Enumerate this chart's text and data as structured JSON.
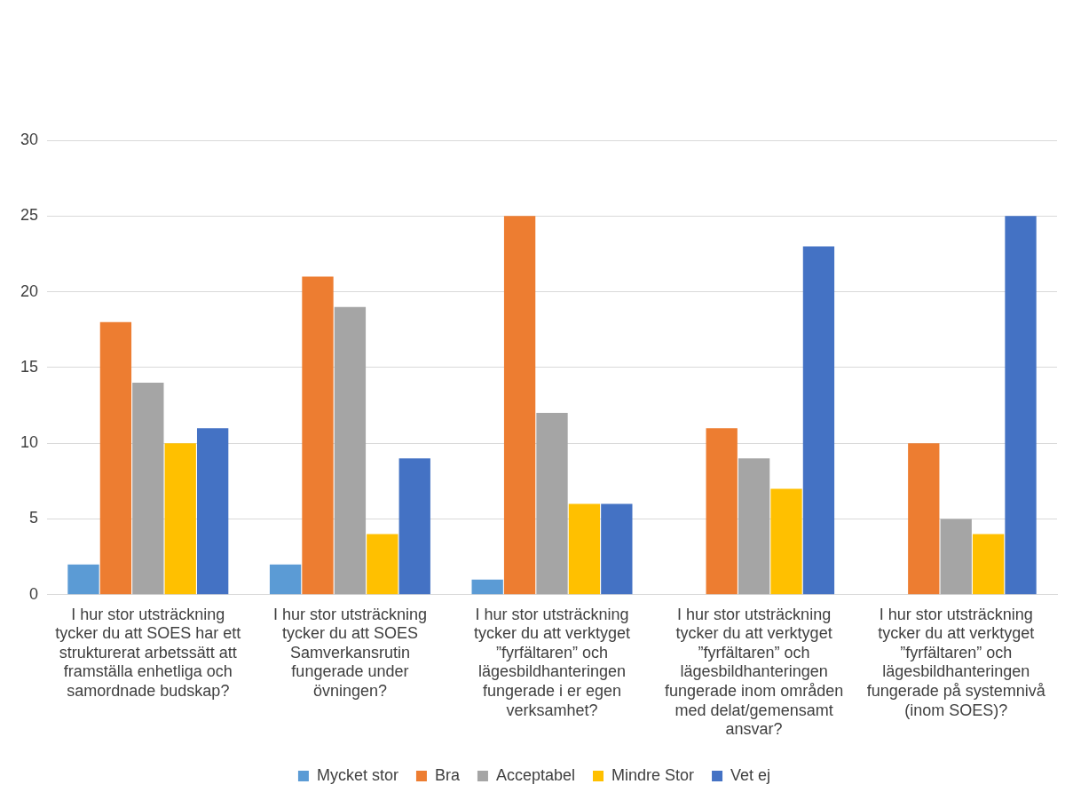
{
  "chart_data": {
    "type": "bar",
    "categories": [
      "I hur stor utsträckning tycker du att SOES har ett strukturerat arbetssätt att framställa enhetliga och samordnade budskap?",
      "I hur stor utsträckning tycker du att SOES Samverkansrutin fungerade under övningen?",
      "I hur stor utsträckning tycker du att verktyget ”fyrfältaren” och lägesbildhanteringen fungerade i er egen verksamhet?",
      "I hur stor utsträckning tycker du att verktyget ”fyrfältaren” och lägesbildhanteringen fungerade inom områden med delat/gemensamt ansvar?",
      "I hur stor utsträckning tycker du att verktyget ”fyrfältaren” och lägesbildhanteringen fungerade på systemnivå (inom SOES)?"
    ],
    "series": [
      {
        "name": "Mycket stor",
        "color": "#5b9bd5",
        "values": [
          2,
          2,
          1,
          0,
          0
        ]
      },
      {
        "name": "Bra",
        "color": "#ed7d31",
        "values": [
          18,
          21,
          25,
          11,
          10
        ]
      },
      {
        "name": "Acceptabel",
        "color": "#a5a5a5",
        "values": [
          14,
          19,
          12,
          9,
          5
        ]
      },
      {
        "name": "Mindre Stor",
        "color": "#ffc000",
        "values": [
          10,
          4,
          6,
          7,
          4
        ]
      },
      {
        "name": "Vet ej",
        "color": "#4472c4",
        "values": [
          11,
          9,
          6,
          23,
          25
        ]
      }
    ],
    "ylim": [
      0,
      30
    ],
    "yticks": [
      0,
      5,
      10,
      15,
      20,
      25,
      30
    ],
    "grid": "y",
    "legend": "bottom"
  }
}
